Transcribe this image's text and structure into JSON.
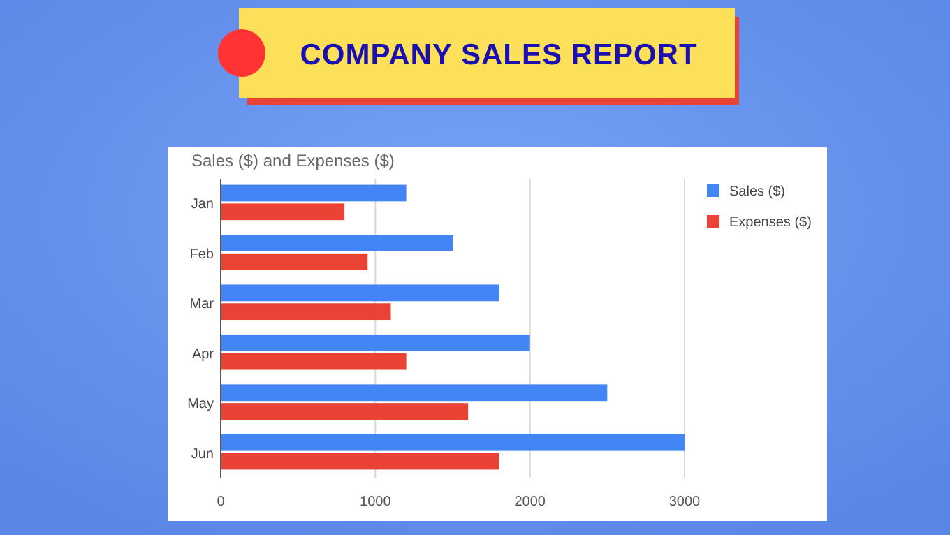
{
  "chart_data": {
    "type": "bar",
    "orientation": "horizontal",
    "title": "COMPANY SALES REPORT",
    "subtitle": "Sales ($) and Expenses ($)",
    "categories": [
      "Jan",
      "Feb",
      "Mar",
      "Apr",
      "May",
      "Jun"
    ],
    "series": [
      {
        "name": "Sales ($)",
        "color": "#4285f4",
        "values": [
          1200,
          1500,
          1800,
          2000,
          2500,
          3000
        ]
      },
      {
        "name": "Expenses ($)",
        "color": "#ea4335",
        "values": [
          800,
          950,
          1100,
          1200,
          1600,
          1800
        ]
      }
    ],
    "xlim": [
      0,
      3000
    ],
    "xticks": [
      0,
      1000,
      2000,
      3000
    ],
    "grid": "x",
    "legend": "top right"
  }
}
